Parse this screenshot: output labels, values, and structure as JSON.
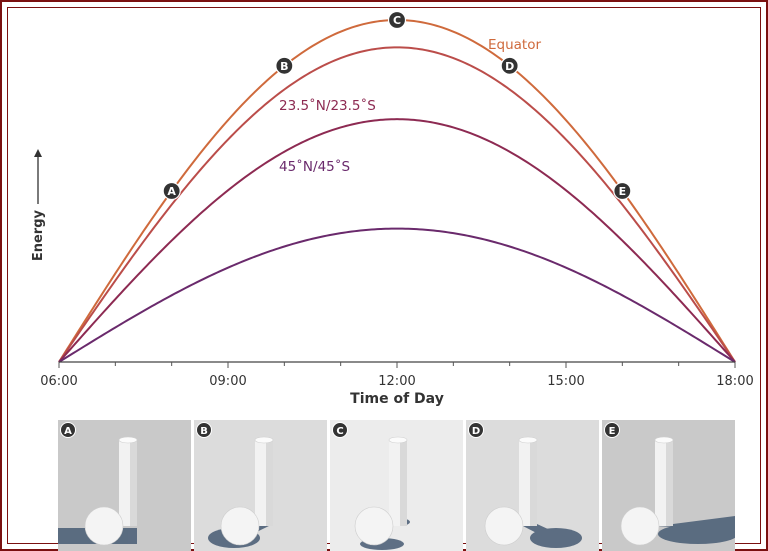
{
  "chart_data": {
    "type": "line",
    "xlabel": "Time of Day",
    "ylabel": "Energy",
    "x_ticks": [
      "06:00",
      "09:00",
      "12:00",
      "15:00",
      "18:00"
    ],
    "xlim": [
      6,
      18
    ],
    "ylim": [
      0,
      100
    ],
    "grid": false,
    "series": [
      {
        "name": "Equator",
        "color": "#cf6a3c",
        "peak": 100
      },
      {
        "name": "",
        "color": "#bb4d4a",
        "peak": 92
      },
      {
        "name": "23.5˚N/23.5˚S",
        "color": "#8d2a52",
        "peak": 71
      },
      {
        "name": "45˚N/45˚S",
        "color": "#6a2a6c",
        "peak": 39
      }
    ],
    "labels": [
      {
        "text": "Equator",
        "color": "#cf6a3c"
      },
      {
        "text": "23.5˚N/23.5˚S",
        "color": "#8d2a52"
      },
      {
        "text": "45˚N/45˚S",
        "color": "#6a2a6c"
      }
    ],
    "markers": [
      {
        "letter": "A",
        "x": 8,
        "series": 0
      },
      {
        "letter": "B",
        "x": 10,
        "series": 0
      },
      {
        "letter": "C",
        "x": 12,
        "series": 0
      },
      {
        "letter": "D",
        "x": 14,
        "series": 0
      },
      {
        "letter": "E",
        "x": 16,
        "series": 0
      }
    ]
  },
  "thumbnails": [
    {
      "letter": "A",
      "background": "#c9c9c9",
      "shadow": "left"
    },
    {
      "letter": "B",
      "background": "#dcdcdc",
      "shadow": "lower-left"
    },
    {
      "letter": "C",
      "background": "#ececec",
      "shadow": "below"
    },
    {
      "letter": "D",
      "background": "#dcdcdc",
      "shadow": "lower-right"
    },
    {
      "letter": "E",
      "background": "#c9c9c9",
      "shadow": "right"
    }
  ]
}
